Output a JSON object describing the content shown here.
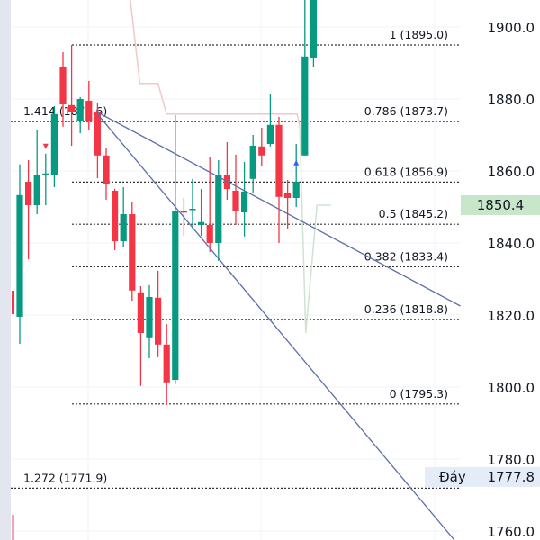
{
  "chart_data": {
    "type": "candlestick",
    "ylim": [
      1757,
      1907.5
    ],
    "y_ticks": [
      1900.0,
      1880.0,
      1860.0,
      1840.0,
      1820.0,
      1800.0,
      1780.0,
      1760.0
    ],
    "y_tick_labels": [
      "1900.0",
      "1880.0",
      "1860.0",
      "1840.0",
      "1820.0",
      "1800.0",
      "1780.0",
      "1760.0"
    ],
    "grid": true,
    "colors": {
      "up": "#089981",
      "down": "#f23645",
      "trendline": "#5b6ea8",
      "fib_blue": "#5a76b8",
      "indicator_pink": "#f0c8c8",
      "indicator_green": "#cfe3d3"
    },
    "candles": [
      {
        "o": 1819.5,
        "h": 1861.8,
        "l": 1812.0,
        "c": 1853.3
      },
      {
        "o": 1857.0,
        "h": 1863.0,
        "l": 1835.5,
        "c": 1850.5
      },
      {
        "o": 1850.5,
        "h": 1871.3,
        "l": 1848.0,
        "c": 1858.8
      },
      {
        "o": 1859.0,
        "h": 1864.8,
        "l": 1850.5,
        "c": 1859.3
      },
      {
        "o": 1859.0,
        "h": 1878.0,
        "l": 1855.5,
        "c": 1875.8
      },
      {
        "o": 1888.8,
        "h": 1893.0,
        "l": 1872.3,
        "c": 1878.5
      },
      {
        "o": 1878.3,
        "h": 1895.0,
        "l": 1867.0,
        "c": 1876.3
      },
      {
        "o": 1873.8,
        "h": 1880.5,
        "l": 1870.5,
        "c": 1880.0
      },
      {
        "o": 1879.5,
        "h": 1885.0,
        "l": 1871.3,
        "c": 1873.8
      },
      {
        "o": 1876.3,
        "h": 1878.8,
        "l": 1858.0,
        "c": 1864.3
      },
      {
        "o": 1864.3,
        "h": 1866.5,
        "l": 1852.0,
        "c": 1856.5
      },
      {
        "o": 1854.5,
        "h": 1855.0,
        "l": 1838.0,
        "c": 1840.5
      },
      {
        "o": 1840.5,
        "h": 1855.5,
        "l": 1838.8,
        "c": 1848.0
      },
      {
        "o": 1848.0,
        "h": 1851.3,
        "l": 1824.0,
        "c": 1826.8
      },
      {
        "o": 1826.3,
        "h": 1828.0,
        "l": 1800.3,
        "c": 1815.0
      },
      {
        "o": 1813.8,
        "h": 1828.3,
        "l": 1808.0,
        "c": 1825.0
      },
      {
        "o": 1824.8,
        "h": 1832.3,
        "l": 1808.3,
        "c": 1811.8
      },
      {
        "o": 1811.8,
        "h": 1817.5,
        "l": 1795.0,
        "c": 1801.3
      },
      {
        "o": 1802.0,
        "h": 1875.5,
        "l": 1800.8,
        "c": 1848.8
      },
      {
        "o": 1848.8,
        "h": 1852.5,
        "l": 1842.0,
        "c": 1848.5
      },
      {
        "o": 1849.3,
        "h": 1857.8,
        "l": 1843.8,
        "c": 1849.5
      },
      {
        "o": 1845.0,
        "h": 1855.0,
        "l": 1842.0,
        "c": 1845.8
      },
      {
        "o": 1845.0,
        "h": 1863.8,
        "l": 1837.5,
        "c": 1840.0
      },
      {
        "o": 1840.0,
        "h": 1863.0,
        "l": 1835.0,
        "c": 1858.8
      },
      {
        "o": 1858.8,
        "h": 1868.0,
        "l": 1852.0,
        "c": 1855.0
      },
      {
        "o": 1854.5,
        "h": 1864.5,
        "l": 1845.0,
        "c": 1848.8
      },
      {
        "o": 1848.5,
        "h": 1862.5,
        "l": 1841.8,
        "c": 1854.3
      },
      {
        "o": 1857.8,
        "h": 1870.0,
        "l": 1853.8,
        "c": 1867.0
      },
      {
        "o": 1866.8,
        "h": 1872.0,
        "l": 1861.3,
        "c": 1864.3
      },
      {
        "o": 1867.5,
        "h": 1881.5,
        "l": 1866.8,
        "c": 1872.8
      },
      {
        "o": 1872.8,
        "h": 1875.0,
        "l": 1840.0,
        "c": 1852.8
      },
      {
        "o": 1853.8,
        "h": 1857.5,
        "l": 1843.8,
        "c": 1852.5
      },
      {
        "o": 1852.5,
        "h": 1867.5,
        "l": 1850.0,
        "c": 1857.0
      },
      {
        "o": 1864.3,
        "h": 1907.5,
        "l": 1864.3,
        "c": 1891.8
      },
      {
        "o": 1891.3,
        "h": 1910.0,
        "l": 1888.8,
        "c": 1910.0
      }
    ],
    "markers": [
      {
        "candle": 3,
        "type": "sell-triangle-down",
        "price": 1866.8,
        "color": "#f23645"
      },
      {
        "candle": 32,
        "type": "buy-triangle-up",
        "price": 1862.3,
        "color": "#2962ff"
      }
    ],
    "fib_levels": [
      {
        "ratio_label": "1 (1895.0)",
        "price": 1895.0,
        "color": "#131722",
        "full": false
      },
      {
        "ratio_label": "0.786 (1873.7)",
        "price": 1873.7,
        "color": "#131722",
        "full": true
      },
      {
        "ratio_label": "0.618 (1856.9)",
        "price": 1856.9,
        "color": "#5a76b8",
        "full": false
      },
      {
        "ratio_label": "0.5 (1845.2)",
        "price": 1845.2,
        "color": "#5a76b8",
        "full": false
      },
      {
        "ratio_label": "0.382 (1833.4)",
        "price": 1833.4,
        "color": "#131722",
        "full": false
      },
      {
        "ratio_label": "0.236 (1818.8)",
        "price": 1818.8,
        "color": "#131722",
        "full": false
      },
      {
        "ratio_label": "0 (1795.3)",
        "price": 1795.3,
        "color": "#131722",
        "full": false
      },
      {
        "ratio_label": "1.272 (1771.9)",
        "price": 1771.9,
        "color": "#131722",
        "full": true
      }
    ],
    "fib_left_label": "1.414 (1873.6)",
    "trendlines": [
      {
        "from": [
          9,
          1876.3
        ],
        "to": [
          51,
          1822.5
        ]
      },
      {
        "from": [
          9,
          1875.8
        ],
        "to": [
          50.3,
          1757.5
        ]
      }
    ],
    "indicator_pink": [
      [
        12.8,
        1907.5
      ],
      [
        13.9,
        1884.3
      ],
      [
        16,
        1884.3
      ],
      [
        17,
        1875.8
      ],
      [
        32.1,
        1875.8
      ],
      [
        32.4,
        1872.5
      ]
    ],
    "indicator_green": [
      [
        32.4,
        1872.5
      ],
      [
        33.1,
        1815
      ],
      [
        34.4,
        1850.5
      ],
      [
        36,
        1850.5
      ]
    ]
  },
  "price_scale": {
    "last_price": "1850.4",
    "last_price_value": 1850.4,
    "day_low_label": "Đáy",
    "day_low": "1777.8",
    "day_low_value": 1777.8
  }
}
